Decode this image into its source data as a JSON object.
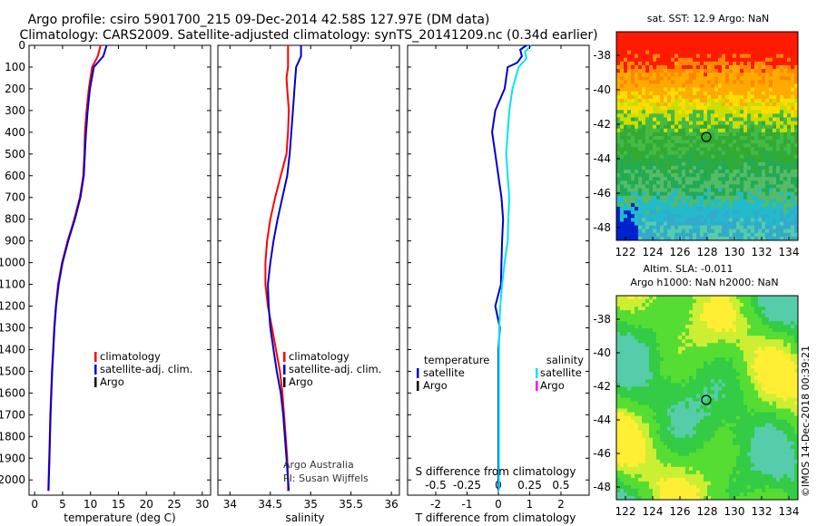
{
  "header": {
    "title1": "Argo profile: csiro 5901700_215 09-Dec-2014 42.58S 127.97E (DM data)",
    "title2": "Climatology: CARS2009. Satellite-adjusted climatology: synTS_20141209.nc (0.34d earlier)"
  },
  "colors": {
    "climatology": "#ff0000",
    "satellite": "#0000cc",
    "argo": "#000000",
    "sat_salinity": "#00e5ee",
    "argo_salinity": "#ff00ff"
  },
  "chart_data": [
    {
      "type": "line",
      "id": "temperature",
      "xlabel": "temperature (deg C)",
      "ylabel": "",
      "xlim": [
        -1,
        31.5
      ],
      "ylim": [
        2070,
        0
      ],
      "xticks": [
        "0",
        "5",
        "10",
        "15",
        "20",
        "25",
        "30"
      ],
      "xtick_values": [
        0,
        5,
        10,
        15,
        20,
        25,
        30
      ],
      "yticks": [
        "0",
        "100",
        "200",
        "300",
        "400",
        "500",
        "600",
        "700",
        "800",
        "900",
        "1000",
        "1100",
        "1200",
        "1300",
        "1400",
        "1500",
        "1600",
        "1700",
        "1800",
        "1900",
        "2000"
      ],
      "ytick_values": [
        0,
        100,
        200,
        300,
        400,
        500,
        600,
        700,
        800,
        900,
        1000,
        1100,
        1200,
        1300,
        1400,
        1500,
        1600,
        1700,
        1800,
        1900,
        2000
      ],
      "series": [
        {
          "name": "climatology",
          "color_key": "climatology",
          "depth": [
            0,
            50,
            100,
            200,
            300,
            400,
            500,
            600,
            700,
            800,
            900,
            1000,
            1100,
            1200,
            1300,
            1400,
            1500,
            1600,
            1700,
            1800,
            1900,
            2000,
            2050
          ],
          "values": [
            11.8,
            11.3,
            10.3,
            9.7,
            9.3,
            9.0,
            8.9,
            8.7,
            8.1,
            7.1,
            5.9,
            4.9,
            4.2,
            3.8,
            3.5,
            3.3,
            3.1,
            2.95,
            2.8,
            2.7,
            2.6,
            2.5,
            2.45
          ]
        },
        {
          "name": "satellite-adj. clim.",
          "color_key": "satellite",
          "depth": [
            0,
            50,
            100,
            200,
            300,
            400,
            500,
            600,
            700,
            800,
            900,
            1000,
            1100,
            1200,
            1300,
            1400,
            1500,
            1600,
            1700,
            1800,
            1900,
            2000,
            2050
          ],
          "values": [
            12.9,
            12.3,
            10.6,
            9.9,
            9.5,
            9.2,
            9.0,
            8.8,
            8.2,
            7.2,
            6.0,
            5.0,
            4.3,
            3.85,
            3.55,
            3.35,
            3.15,
            3.0,
            2.85,
            2.75,
            2.65,
            2.55,
            2.5
          ]
        }
      ],
      "legend": [
        "climatology",
        "satellite-adj. clim.",
        "Argo"
      ],
      "legend_colors": [
        "climatology",
        "satellite",
        "argo"
      ]
    },
    {
      "type": "line",
      "id": "salinity",
      "xlabel": "salinity",
      "xlim": [
        33.85,
        36.1
      ],
      "ylim": [
        2070,
        0
      ],
      "xticks": [
        "34",
        "34.5",
        "35",
        "35.5",
        "36"
      ],
      "xtick_values": [
        34,
        34.5,
        35,
        35.5,
        36
      ],
      "series": [
        {
          "name": "climatology",
          "color_key": "climatology",
          "depth": [
            0,
            50,
            100,
            150,
            200,
            300,
            400,
            500,
            600,
            700,
            800,
            900,
            1000,
            1100,
            1200,
            1300,
            1400,
            1500,
            1600,
            1700,
            1800,
            1900,
            2000,
            2050
          ],
          "values": [
            34.72,
            34.72,
            34.72,
            34.7,
            34.71,
            34.73,
            34.72,
            34.7,
            34.63,
            34.56,
            34.5,
            34.46,
            34.44,
            34.44,
            34.47,
            34.52,
            34.57,
            34.62,
            34.65,
            34.67,
            34.69,
            34.71,
            34.72,
            34.72
          ]
        },
        {
          "name": "satellite-adj. clim.",
          "color_key": "satellite",
          "depth": [
            0,
            50,
            100,
            200,
            300,
            400,
            500,
            600,
            700,
            800,
            900,
            1000,
            1100,
            1200,
            1300,
            1400,
            1500,
            1600,
            1700,
            1800,
            1900,
            2000,
            2050
          ],
          "values": [
            34.88,
            34.88,
            34.82,
            34.8,
            34.78,
            34.76,
            34.74,
            34.71,
            34.65,
            34.59,
            34.54,
            34.5,
            34.47,
            34.48,
            34.5,
            34.54,
            34.58,
            34.63,
            34.66,
            34.68,
            34.7,
            34.72,
            34.73
          ]
        }
      ],
      "legend": [
        "climatology",
        "satellite-adj. clim.",
        "Argo"
      ],
      "legend_colors": [
        "climatology",
        "satellite",
        "argo"
      ],
      "credit": [
        "Argo Australia",
        "PI: Susan Wijffels"
      ]
    },
    {
      "type": "line",
      "id": "difference",
      "xlabel": "T difference from climatology",
      "xlabel2": "S difference from climatology",
      "xlim": [
        -2.9,
        2.9
      ],
      "ylim": [
        2070,
        0
      ],
      "xticks": [
        "-2",
        "-1",
        "0",
        "1",
        "2"
      ],
      "xtick_values": [
        -2,
        -1,
        0,
        1,
        2
      ],
      "xticks2": [
        "-0.5",
        "-0.25",
        "0",
        "0.25",
        "0.5"
      ],
      "series": [
        {
          "name": "temperature satellite",
          "color_key": "satellite",
          "depth": [
            0,
            20,
            50,
            80,
            100,
            150,
            200,
            300,
            400,
            500,
            600,
            700,
            800,
            900,
            1000,
            1100,
            1200,
            1300,
            1400,
            1500,
            1600,
            1700,
            1800,
            1900,
            2000,
            2050
          ],
          "values": [
            0.9,
            0.7,
            0.75,
            0.6,
            0.3,
            0.25,
            0.2,
            -0.1,
            -0.2,
            -0.1,
            0.0,
            0.1,
            0.15,
            0.12,
            0.1,
            0.08,
            -0.1,
            0.05,
            0.0,
            0.0,
            0.0,
            0.0,
            0.0,
            0.0,
            0.0,
            0.0
          ]
        },
        {
          "name": "salinity satellite",
          "color_key": "sat_salinity",
          "depth": [
            0,
            30,
            60,
            100,
            200,
            300,
            400,
            500,
            600,
            700,
            800,
            900,
            1000,
            1100,
            1200,
            1300,
            1400,
            1500,
            1600,
            1700,
            1800,
            1900,
            2000,
            2050
          ],
          "values": [
            1.05,
            0.85,
            0.9,
            0.65,
            0.45,
            0.35,
            0.3,
            0.25,
            0.3,
            0.35,
            0.32,
            0.3,
            0.2,
            0.12,
            0.06,
            0.03,
            0.02,
            0.02,
            0.02,
            0.02,
            0.02,
            0.02,
            0.02,
            0.02
          ]
        }
      ],
      "legend_left_title": "temperature",
      "legend_right_title": "salinity",
      "legend_left": [
        "satellite",
        "Argo"
      ],
      "legend_right": [
        "satellite",
        "Argo"
      ]
    }
  ],
  "maps": {
    "sst": {
      "title": "sat. SST: 12.9 Argo: NaN",
      "xticks": [
        "122",
        "124",
        "126",
        "128",
        "130",
        "132",
        "134"
      ],
      "yticks": [
        "-38",
        "-40",
        "-42",
        "-44",
        "-46",
        "-48"
      ]
    },
    "sla": {
      "title1": "Altim. SLA: -0.011",
      "title2": "Argo h1000: NaN h2000: NaN",
      "xticks": [
        "122",
        "124",
        "126",
        "128",
        "130",
        "132",
        "134"
      ],
      "yticks": [
        "-38",
        "-40",
        "-42",
        "-44",
        "-46",
        "-48"
      ]
    }
  },
  "footer": {
    "stamp": "©IMOS 14-Dec-2018 00:39:21"
  }
}
